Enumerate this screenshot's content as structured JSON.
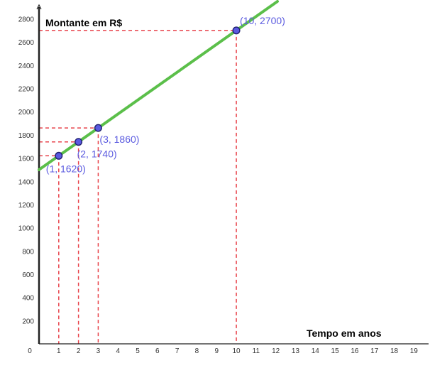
{
  "chart_data": {
    "type": "line",
    "title": "",
    "xlabel": "Tempo em anos",
    "ylabel": "Montante em R$",
    "xlim": [
      0,
      19.6
    ],
    "ylim": [
      0,
      2950
    ],
    "x_ticks": [
      "0",
      "1",
      "2",
      "3",
      "4",
      "5",
      "6",
      "7",
      "8",
      "9",
      "10",
      "11",
      "12",
      "13",
      "14",
      "15",
      "16",
      "17",
      "18",
      "19"
    ],
    "y_ticks": [
      "200",
      "400",
      "600",
      "800",
      "1000",
      "1200",
      "1400",
      "1600",
      "1800",
      "2000",
      "2200",
      "2400",
      "2600",
      "2800"
    ],
    "line": {
      "intercept": 1500,
      "slope": 120,
      "color": "#5bbf4a"
    },
    "points": [
      {
        "x": 1,
        "y": 1620,
        "label": "(1, 1620)"
      },
      {
        "x": 2,
        "y": 1740,
        "label": "(2, 1740)"
      },
      {
        "x": 3,
        "y": 1860,
        "label": "(3, 1860)"
      },
      {
        "x": 10,
        "y": 2700,
        "label": "(10, 2700)"
      }
    ],
    "point_color": "#5a5ae0",
    "guide_color": "#e8424a",
    "grid": false
  }
}
